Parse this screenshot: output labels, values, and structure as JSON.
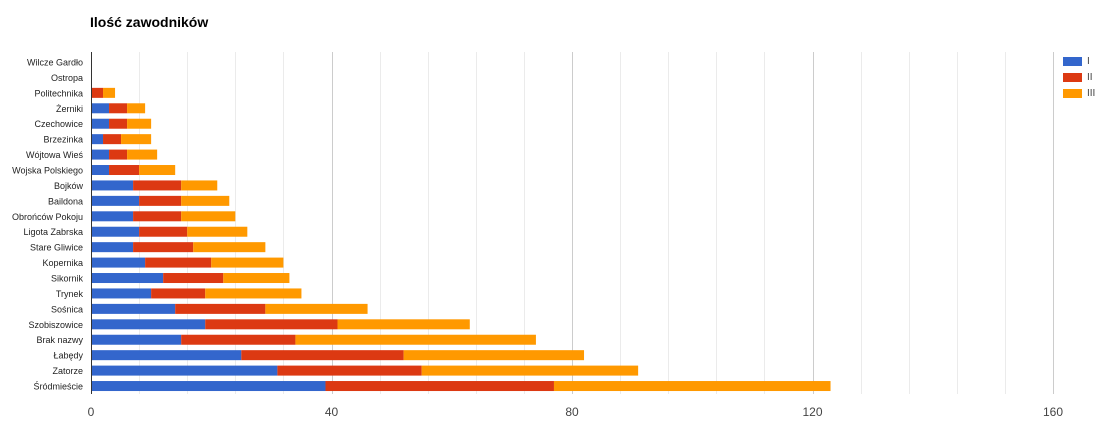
{
  "chart_data": {
    "type": "bar",
    "orientation": "horizontal",
    "stacked": true,
    "title": "Ilość zawodników",
    "xlabel": "",
    "ylabel": "",
    "xlim": [
      0,
      160
    ],
    "x_ticks": [
      "0",
      "40",
      "80",
      "120",
      "160"
    ],
    "grid": true,
    "legend_position": "right",
    "categories": [
      "Wilcze Gardło",
      "Ostropa",
      "Politechnika",
      "Żerniki",
      "Czechowice",
      "Brzezinka",
      "Wójtowa Wieś",
      "Wojska Polskiego",
      "Bojków",
      "Baildona",
      "Obrońców Pokoju",
      "Ligota Zabrska",
      "Stare Gliwice",
      "Kopernika",
      "Sikornik",
      "Trynek",
      "Sośnica",
      "Szobiszowice",
      "Brak nazwy",
      "Łabędy",
      "Zatorze",
      "Śródmieście"
    ],
    "series": [
      {
        "name": "I",
        "color": "#3366cc",
        "values": [
          0,
          0,
          0,
          3,
          3,
          2,
          3,
          3,
          7,
          8,
          7,
          8,
          7,
          9,
          12,
          10,
          14,
          19,
          15,
          25,
          31,
          39
        ]
      },
      {
        "name": "II",
        "color": "#dc3912",
        "values": [
          0,
          0,
          2,
          3,
          3,
          3,
          3,
          5,
          8,
          7,
          8,
          8,
          10,
          11,
          10,
          9,
          15,
          22,
          19,
          27,
          24,
          38
        ]
      },
      {
        "name": "III",
        "color": "#ff9900",
        "values": [
          0,
          0,
          2,
          3,
          4,
          5,
          5,
          6,
          6,
          8,
          9,
          10,
          12,
          12,
          11,
          16,
          17,
          22,
          40,
          30,
          36,
          46
        ]
      }
    ]
  }
}
